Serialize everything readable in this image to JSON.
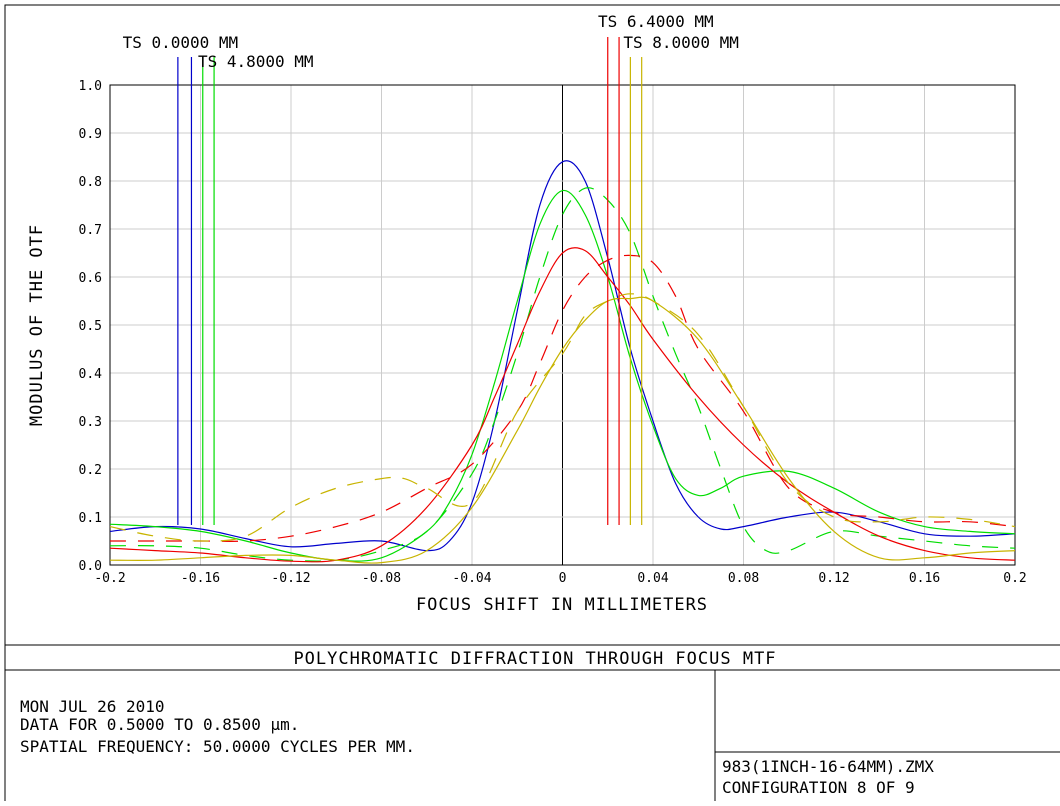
{
  "chart_data": {
    "type": "line",
    "title": "POLYCHROMATIC DIFFRACTION THROUGH FOCUS MTF",
    "xlabel": "FOCUS SHIFT IN MILLIMETERS",
    "ylabel": "MODULUS OF THE OTF",
    "xlim": [
      -0.2,
      0.2
    ],
    "ylim": [
      0.0,
      1.0
    ],
    "xticks": [
      "-0.2",
      "-0.16",
      "-0.12",
      "-0.08",
      "-0.04",
      "0",
      "0.04",
      "0.08",
      "0.12",
      "0.16",
      "0.2"
    ],
    "yticks": [
      "0.0",
      "0.1",
      "0.2",
      "0.3",
      "0.4",
      "0.5",
      "0.6",
      "0.7",
      "0.8",
      "0.9",
      "1.0"
    ],
    "grid": true,
    "legend_labels": [
      "TS 0.0000 MM",
      "TS 4.8000 MM",
      "TS 6.4000 MM",
      "TS 8.0000 MM"
    ],
    "series": [
      {
        "color": "#0000cc",
        "style": "solid",
        "field": "TS 0.0000 MM",
        "x": [
          -0.2,
          -0.18,
          -0.16,
          -0.14,
          -0.12,
          -0.1,
          -0.08,
          -0.06,
          -0.05,
          -0.04,
          -0.03,
          -0.02,
          -0.01,
          0,
          0.01,
          0.02,
          0.03,
          0.04,
          0.05,
          0.06,
          0.07,
          0.08,
          0.1,
          0.12,
          0.14,
          0.16,
          0.18,
          0.2
        ],
        "y": [
          0.07,
          0.08,
          0.075,
          0.055,
          0.038,
          0.045,
          0.05,
          0.03,
          0.05,
          0.13,
          0.3,
          0.53,
          0.75,
          0.84,
          0.8,
          0.64,
          0.45,
          0.3,
          0.17,
          0.1,
          0.075,
          0.08,
          0.1,
          0.11,
          0.09,
          0.065,
          0.06,
          0.065
        ]
      },
      {
        "color": "#00dd00",
        "style": "solid",
        "field": "TS 4.8000 MM",
        "x": [
          -0.2,
          -0.18,
          -0.16,
          -0.14,
          -0.12,
          -0.1,
          -0.08,
          -0.06,
          -0.05,
          -0.04,
          -0.03,
          -0.02,
          -0.01,
          0,
          0.01,
          0.02,
          0.03,
          0.04,
          0.05,
          0.06,
          0.07,
          0.08,
          0.1,
          0.12,
          0.14,
          0.16,
          0.18,
          0.2
        ],
        "y": [
          0.085,
          0.08,
          0.07,
          0.05,
          0.025,
          0.01,
          0.015,
          0.07,
          0.13,
          0.23,
          0.38,
          0.55,
          0.71,
          0.78,
          0.73,
          0.6,
          0.43,
          0.29,
          0.18,
          0.145,
          0.16,
          0.185,
          0.195,
          0.16,
          0.11,
          0.08,
          0.07,
          0.065
        ]
      },
      {
        "color": "#00dd00",
        "style": "dashed",
        "field": "TS 4.8000 MM",
        "x": [
          -0.2,
          -0.18,
          -0.16,
          -0.14,
          -0.12,
          -0.1,
          -0.08,
          -0.06,
          -0.04,
          -0.03,
          -0.02,
          -0.01,
          0,
          0.01,
          0.02,
          0.03,
          0.04,
          0.05,
          0.06,
          0.07,
          0.08,
          0.09,
          0.1,
          0.12,
          0.14,
          0.16,
          0.18,
          0.2
        ],
        "y": [
          0.04,
          0.04,
          0.035,
          0.02,
          0.01,
          0.01,
          0.03,
          0.07,
          0.19,
          0.3,
          0.44,
          0.6,
          0.73,
          0.785,
          0.76,
          0.69,
          0.56,
          0.44,
          0.33,
          0.2,
          0.08,
          0.03,
          0.03,
          0.07,
          0.06,
          0.05,
          0.04,
          0.035
        ]
      },
      {
        "color": "#ee0000",
        "style": "solid",
        "field": "TS 6.4000 MM",
        "x": [
          -0.2,
          -0.18,
          -0.16,
          -0.14,
          -0.12,
          -0.1,
          -0.08,
          -0.06,
          -0.04,
          -0.03,
          -0.02,
          -0.01,
          0,
          0.01,
          0.02,
          0.03,
          0.04,
          0.06,
          0.08,
          0.1,
          0.12,
          0.14,
          0.16,
          0.18,
          0.2
        ],
        "y": [
          0.035,
          0.03,
          0.025,
          0.015,
          0.008,
          0.01,
          0.04,
          0.12,
          0.25,
          0.35,
          0.46,
          0.57,
          0.65,
          0.655,
          0.6,
          0.54,
          0.47,
          0.35,
          0.25,
          0.17,
          0.11,
          0.06,
          0.03,
          0.015,
          0.01
        ]
      },
      {
        "color": "#ee0000",
        "style": "dashed",
        "field": "TS 6.4000 MM",
        "x": [
          -0.2,
          -0.18,
          -0.16,
          -0.14,
          -0.12,
          -0.1,
          -0.08,
          -0.06,
          -0.04,
          -0.02,
          -0.01,
          0,
          0.01,
          0.02,
          0.03,
          0.04,
          0.05,
          0.06,
          0.08,
          0.1,
          0.12,
          0.14,
          0.16,
          0.18,
          0.2
        ],
        "y": [
          0.05,
          0.05,
          0.05,
          0.05,
          0.06,
          0.08,
          0.11,
          0.16,
          0.21,
          0.32,
          0.42,
          0.53,
          0.6,
          0.635,
          0.645,
          0.63,
          0.56,
          0.45,
          0.32,
          0.16,
          0.11,
          0.1,
          0.09,
          0.09,
          0.08
        ]
      },
      {
        "color": "#c8b400",
        "style": "solid",
        "field": "TS 8.0000 MM",
        "x": [
          -0.2,
          -0.18,
          -0.16,
          -0.14,
          -0.12,
          -0.1,
          -0.08,
          -0.06,
          -0.04,
          -0.02,
          -0.01,
          0,
          0.01,
          0.02,
          0.03,
          0.04,
          0.06,
          0.08,
          0.1,
          0.12,
          0.14,
          0.16,
          0.18,
          0.2
        ],
        "y": [
          0.01,
          0.01,
          0.015,
          0.02,
          0.02,
          0.01,
          0.005,
          0.03,
          0.12,
          0.28,
          0.37,
          0.45,
          0.51,
          0.55,
          0.555,
          0.55,
          0.47,
          0.33,
          0.18,
          0.07,
          0.015,
          0.015,
          0.025,
          0.03
        ]
      },
      {
        "color": "#c8b400",
        "style": "dashed",
        "field": "TS 8.0000 MM",
        "x": [
          -0.2,
          -0.18,
          -0.16,
          -0.14,
          -0.12,
          -0.1,
          -0.08,
          -0.07,
          -0.06,
          -0.04,
          -0.02,
          0,
          0.01,
          0.02,
          0.03,
          0.04,
          0.06,
          0.08,
          0.1,
          0.12,
          0.14,
          0.16,
          0.18,
          0.2
        ],
        "y": [
          0.08,
          0.06,
          0.05,
          0.06,
          0.12,
          0.16,
          0.18,
          0.18,
          0.16,
          0.13,
          0.32,
          0.44,
          0.52,
          0.55,
          0.565,
          0.55,
          0.48,
          0.33,
          0.17,
          0.1,
          0.09,
          0.1,
          0.095,
          0.08
        ]
      }
    ],
    "field_markers": [
      {
        "label": "TS 0.0000 MM",
        "color": "#0000cc",
        "x": [
          -0.17,
          -0.164
        ]
      },
      {
        "label": "TS 4.8000 MM",
        "color": "#00dd00",
        "x": [
          -0.159,
          -0.154
        ]
      },
      {
        "label": "TS 6.4000 MM",
        "color": "#ee0000",
        "x": [
          0.02,
          0.025
        ]
      },
      {
        "label": "TS 8.0000 MM",
        "color": "#c8b400",
        "x": [
          0.03,
          0.035
        ]
      }
    ]
  },
  "footer": {
    "date": "MON JUL 26 2010",
    "data_range": "DATA FOR 0.5000 TO 0.8500 µm.",
    "spatial_frequency": "SPATIAL FREQUENCY: 50.0000 CYCLES PER MM.",
    "filename": "983(1INCH-16-64MM).ZMX",
    "configuration": "CONFIGURATION 8 OF 9"
  }
}
